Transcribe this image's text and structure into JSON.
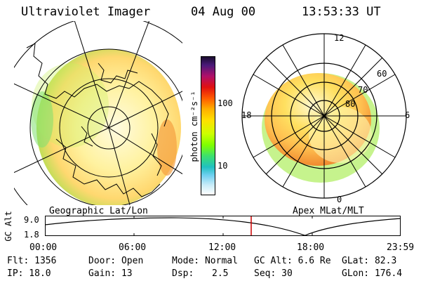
{
  "header": {
    "instrument": "Ultraviolet Imager",
    "date": "04 Aug 00",
    "time": "13:53:33 UT"
  },
  "left_panel": {
    "caption": "Geographic Lat/Lon"
  },
  "right_panel": {
    "caption": "Apex MLat/MLT",
    "mlt_labels": [
      "12",
      "18",
      "6",
      "0"
    ],
    "mlat_labels": [
      "60",
      "70",
      "80"
    ]
  },
  "colorbar": {
    "unit_label": "photon cm⁻²s⁻¹",
    "ticks": [
      "100",
      "10"
    ],
    "scale": "log",
    "colors_top_to_bottom": [
      "#1a0d2e",
      "#4a1a7a",
      "#b0106a",
      "#e01010",
      "#ff5a00",
      "#ffb000",
      "#ffe000",
      "#ccff00",
      "#7fff00",
      "#3ce06e",
      "#20c0c0",
      "#70d0f0",
      "#c8ecf8",
      "#ffffff"
    ]
  },
  "altitude_plot": {
    "ylabel": "GC Alt",
    "yticks": [
      "9.0",
      "1.8"
    ],
    "xticks": [
      "00:00",
      "06:00",
      "12:00",
      "18:00",
      "23:59"
    ],
    "marker_time": "13:53",
    "marker_color": "#cc0000"
  },
  "info": {
    "flt": "Flt: 1356",
    "ip": "IP: 18.0",
    "door": "Door: Open",
    "gain": "Gain: 13",
    "mode": "Mode: Normal",
    "dsp_label": "Dsp:",
    "dsp_value": "2.5",
    "gcalt": "GC Alt: 6.6 Re",
    "seq": "Seq: 30",
    "glat": "GLat: 82.3",
    "glon": "GLon: 176.4"
  }
}
